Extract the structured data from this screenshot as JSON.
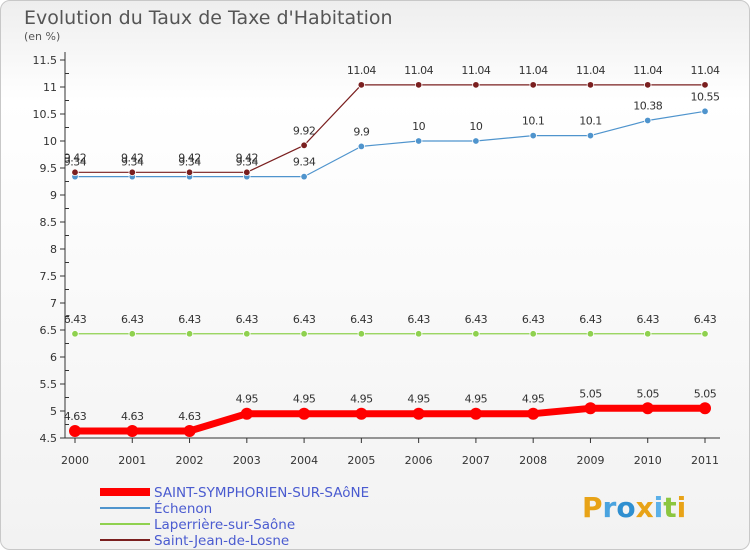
{
  "title": "Evolution du Taux de Taxe d'Habitation",
  "subtitle": "(en %)",
  "logo": {
    "text": "Proxiti",
    "letters": [
      "P",
      "r",
      "o",
      "x",
      "i",
      "t",
      "i"
    ],
    "colors": [
      "#e8a317",
      "#4aa3df",
      "#2f8fd0",
      "#e8a317",
      "#5bb0e8",
      "#8cc63f",
      "#e8a317"
    ]
  },
  "chart_data": {
    "type": "line",
    "title": "Evolution du Taux de Taxe d'Habitation",
    "subtitle": "(en %)",
    "xlabel": "",
    "ylabel": "",
    "ylim": [
      4.5,
      11.5
    ],
    "yticks": [
      4.5,
      5,
      5.5,
      6,
      6.5,
      7,
      7.5,
      8,
      8.5,
      9,
      9.5,
      10,
      10.5,
      11,
      11.5
    ],
    "ytick_labels": [
      "4.5",
      "5",
      "5.5",
      "6",
      "6.5",
      "7",
      "7.5",
      "8",
      "8.5",
      "9",
      "9.5",
      "10",
      "10.5",
      "11",
      "11.5"
    ],
    "grid": false,
    "legend_position": "bottom-left",
    "x": [
      "2000",
      "2001",
      "2002",
      "2003",
      "2004",
      "2005",
      "2006",
      "2007",
      "2008",
      "2009",
      "2010",
      "2011"
    ],
    "series": [
      {
        "name": "SAINT-SYMPHORIEN-SUR-SAôNE",
        "color": "#ff0000",
        "values": [
          4.63,
          4.63,
          4.63,
          4.95,
          4.95,
          4.95,
          4.95,
          4.95,
          4.95,
          5.05,
          5.05,
          5.05
        ],
        "labels": [
          "4.63",
          "4.63",
          "4.63",
          "4.95",
          "4.95",
          "4.95",
          "4.95",
          "4.95",
          "4.95",
          "5.05",
          "5.05",
          "5.05"
        ]
      },
      {
        "name": "Échenon",
        "color": "#4f94cd",
        "values": [
          9.34,
          9.34,
          9.34,
          9.34,
          9.34,
          9.9,
          10,
          10,
          10.1,
          10.1,
          10.38,
          10.55
        ],
        "labels": [
          "9.34",
          "9.34",
          "9.34",
          "9.34",
          "9.34",
          "9.9",
          "10",
          "10",
          "10.1",
          "10.1",
          "10.38",
          "10.55"
        ]
      },
      {
        "name": "Laperrière-sur-Saône",
        "color": "#8fd14f",
        "values": [
          6.43,
          6.43,
          6.43,
          6.43,
          6.43,
          6.43,
          6.43,
          6.43,
          6.43,
          6.43,
          6.43,
          6.43
        ],
        "labels": [
          "6.43",
          "6.43",
          "6.43",
          "6.43",
          "6.43",
          "6.43",
          "6.43",
          "6.43",
          "6.43",
          "6.43",
          "6.43",
          "6.43"
        ]
      },
      {
        "name": "Saint-Jean-de-Losne",
        "color": "#7a1f1f",
        "values": [
          9.42,
          9.42,
          9.42,
          9.42,
          9.92,
          11.04,
          11.04,
          11.04,
          11.04,
          11.04,
          11.04,
          11.04
        ],
        "labels": [
          "9.42",
          "9.42",
          "9.42",
          "9.42",
          "9.92",
          "11.04",
          "11.04",
          "11.04",
          "11.04",
          "11.04",
          "11.04",
          "11.04"
        ]
      }
    ]
  }
}
